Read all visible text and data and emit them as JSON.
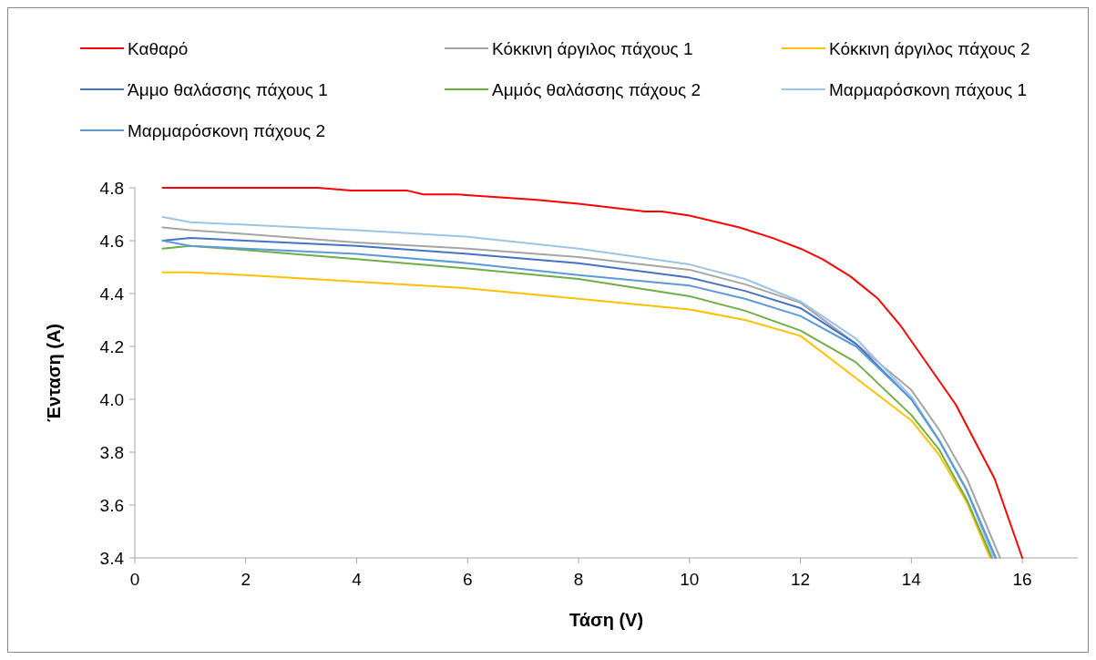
{
  "chart_data": {
    "type": "line",
    "xlabel": "Τάση (V)",
    "ylabel": "Ένταση (A)",
    "xlim": [
      0,
      17
    ],
    "xticks": [
      0,
      2,
      4,
      6,
      8,
      10,
      12,
      14,
      16
    ],
    "ylim": [
      3.4,
      4.8
    ],
    "yticks": [
      {
        "value": 3.4,
        "label": "3.4"
      },
      {
        "value": 3.6,
        "label": "3.6"
      },
      {
        "value": 3.8,
        "label": "3.8"
      },
      {
        "value": 4.0,
        "label": "4.0"
      },
      {
        "value": 4.2,
        "label": "4.2"
      },
      {
        "value": 4.4,
        "label": "4.4"
      },
      {
        "value": 4.6,
        "label": "4.6"
      },
      {
        "value": 4.8,
        "label": "4.8"
      }
    ],
    "grid": false,
    "legend": "top",
    "marker": "none",
    "line_style": "solid",
    "series": [
      {
        "name": "Καθαρό",
        "color": "#ff0000",
        "x": [
          0.5,
          3.3,
          3.9,
          4.9,
          5.2,
          5.8,
          7.2,
          8,
          9.2,
          9.5,
          10,
          10.9,
          11.5,
          12,
          12.4,
          12.9,
          13.4,
          13.8,
          14.3,
          14.8,
          15.2,
          15.5,
          16
        ],
        "values": [
          4.8,
          4.8,
          4.79,
          4.79,
          4.775,
          4.775,
          4.755,
          4.74,
          4.71,
          4.71,
          4.695,
          4.65,
          4.61,
          4.57,
          4.53,
          4.465,
          4.38,
          4.28,
          4.13,
          3.98,
          3.82,
          3.7,
          3.4
        ]
      },
      {
        "name": "Κόκκινη άργιλος πάχους 1",
        "color": "#a5a5a5",
        "x": [
          0.5,
          1,
          2,
          4,
          6,
          8,
          10,
          11,
          12,
          13,
          14,
          14.5,
          15,
          15.6
        ],
        "values": [
          4.65,
          4.64,
          4.625,
          4.593,
          4.57,
          4.538,
          4.49,
          4.435,
          4.365,
          4.21,
          4.035,
          3.885,
          3.7,
          3.4
        ]
      },
      {
        "name": "Κόκκινη άργιλος πάχους 2",
        "color": "#ffc000",
        "x": [
          0.5,
          1,
          2,
          4,
          6,
          8,
          10,
          11,
          12,
          13,
          14,
          14.5,
          15,
          15.42
        ],
        "values": [
          4.48,
          4.48,
          4.47,
          4.445,
          4.42,
          4.38,
          4.34,
          4.3,
          4.24,
          4.08,
          3.92,
          3.79,
          3.61,
          3.4
        ]
      },
      {
        "name": "Άμμο θαλάσσης πάχους 1",
        "color": "#4472c4",
        "x": [
          0.5,
          1,
          2,
          4,
          6,
          8,
          10,
          11,
          12,
          13,
          14,
          14.5,
          15,
          15.52
        ],
        "values": [
          4.6,
          4.61,
          4.6,
          4.58,
          4.55,
          4.515,
          4.46,
          4.41,
          4.345,
          4.21,
          4.0,
          3.845,
          3.655,
          3.4
        ]
      },
      {
        "name": "Αμμός θαλάσσης πάχους 2",
        "color": "#70ad47",
        "x": [
          0.5,
          1,
          2,
          4,
          6,
          8,
          10,
          11,
          12,
          13,
          14,
          14.5,
          15,
          15.45
        ],
        "values": [
          4.57,
          4.58,
          4.565,
          4.53,
          4.495,
          4.455,
          4.39,
          4.335,
          4.26,
          4.14,
          3.94,
          3.81,
          3.62,
          3.4
        ]
      },
      {
        "name": "Μαρμαρόσκονη πάχους 1",
        "color": "#9dc3e6",
        "x": [
          0.5,
          1,
          2,
          4,
          6,
          8,
          10,
          11,
          12,
          13,
          14,
          14.5,
          15,
          15.48
        ],
        "values": [
          4.69,
          4.67,
          4.66,
          4.64,
          4.615,
          4.57,
          4.51,
          4.455,
          4.37,
          4.23,
          4.01,
          3.845,
          3.655,
          3.4
        ]
      },
      {
        "name": "Μαρμαρόσκονη πάχους 2",
        "color": "#5b9bd5",
        "x": [
          0.5,
          1,
          2,
          4,
          6,
          8,
          10,
          11,
          12,
          13,
          14,
          14.5,
          15,
          15.52
        ],
        "values": [
          4.6,
          4.58,
          4.57,
          4.55,
          4.515,
          4.47,
          4.43,
          4.38,
          4.315,
          4.2,
          4.0,
          3.845,
          3.655,
          3.4
        ]
      }
    ]
  }
}
